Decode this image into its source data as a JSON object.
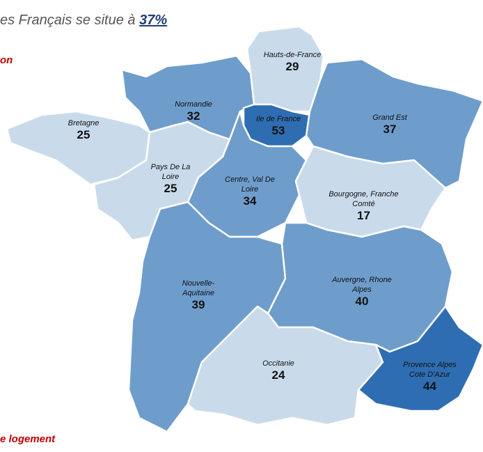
{
  "header": {
    "text": "es Français se situe à",
    "highlight": "37%"
  },
  "subtitle": "on",
  "footer": "e logement",
  "regions": [
    {
      "name": "Hauts-de-France",
      "value": 29,
      "color": "#c9dbeb"
    },
    {
      "name": "Normandie",
      "value": 32,
      "color": "#6e9dcc"
    },
    {
      "name": "Ile de France",
      "value": 53,
      "color": "#2f6db2"
    },
    {
      "name": "Grand Est",
      "value": 37,
      "color": "#6e9dcc"
    },
    {
      "name": "Bretagne",
      "value": 25,
      "color": "#c9dbeb"
    },
    {
      "name": "Pays De La Loire",
      "value": 25,
      "color": "#c9dbeb"
    },
    {
      "name": "Centre, Val De Loire",
      "value": 34,
      "color": "#6e9dcc"
    },
    {
      "name": "Bourgogne, Franche Comté",
      "value": 17,
      "color": "#c9dbeb"
    },
    {
      "name": "Nouvelle-Aquitaine",
      "value": 39,
      "color": "#6e9dcc"
    },
    {
      "name": "Auvergne, Rhone Alpes",
      "value": 40,
      "color": "#6e9dcc"
    },
    {
      "name": "Occitanie",
      "value": 24,
      "color": "#c9dbeb"
    },
    {
      "name": "Provence Alpes Cote D'Azur",
      "value": 44,
      "color": "#2f6db2"
    }
  ]
}
